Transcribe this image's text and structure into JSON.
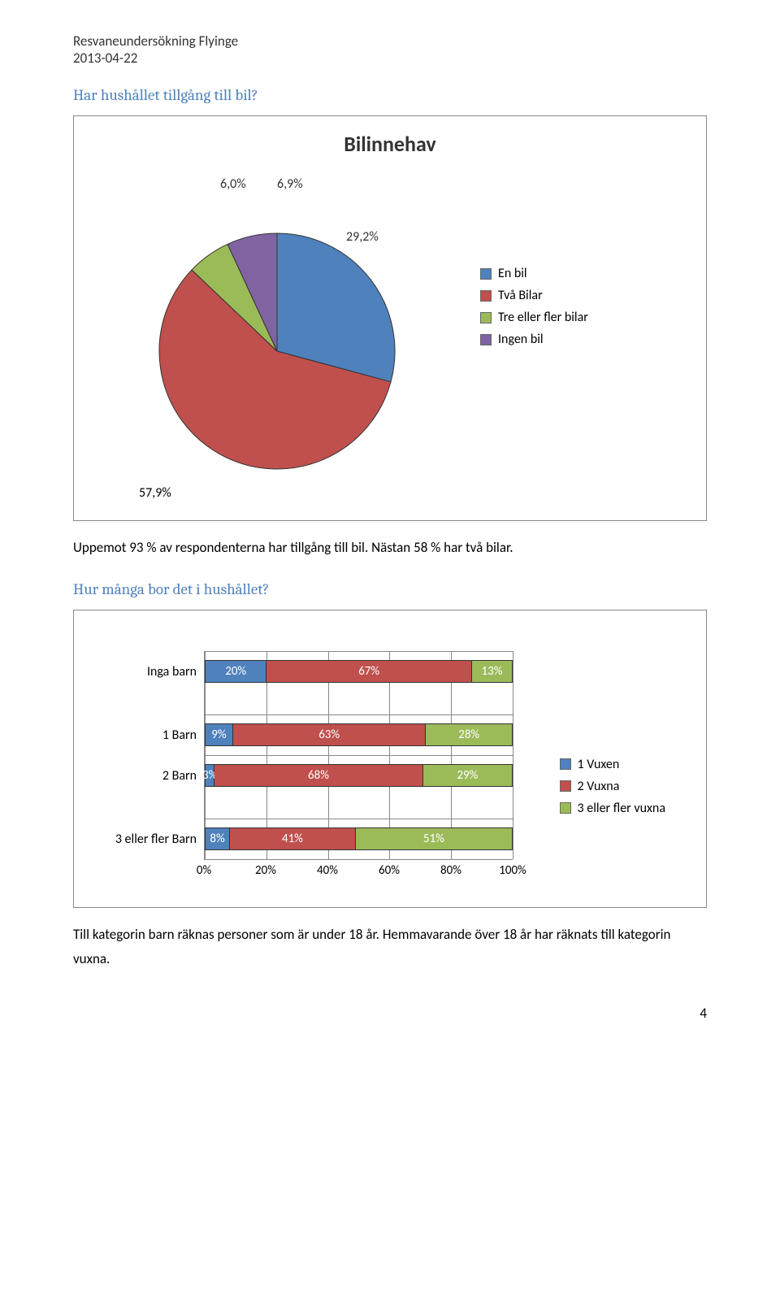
{
  "header": {
    "line1": "Resvaneundersökning Flyinge",
    "line2": "2013-04-22"
  },
  "section1": {
    "heading": "Har hushållet tillgång till bil?",
    "chart": {
      "title": "Bilinnehav",
      "type": "pie",
      "slices": [
        {
          "label": "En bil",
          "value": 29.2,
          "display": "29,2%",
          "color": "#4f81bd"
        },
        {
          "label": "Två Bilar",
          "value": 57.9,
          "display": "57,9%",
          "color": "#c0504d"
        },
        {
          "label": "Tre eller fler bilar",
          "value": 6.0,
          "display": "6,0%",
          "color": "#9bbb59"
        },
        {
          "label": "Ingen bil",
          "value": 6.9,
          "display": "6,9%",
          "color": "#8064a2"
        }
      ],
      "bottom_label": "57,9%",
      "label_fontsize": 16,
      "title_fontsize": 26
    },
    "body": "Uppemot 93 % av respondenterna har tillgång till bil. Nästan 58 % har två bilar."
  },
  "section2": {
    "heading": "Hur många bor det i hushållet?",
    "chart": {
      "type": "stacked-bar-horizontal",
      "categories": [
        {
          "label": "Inga barn",
          "segments": [
            20,
            67,
            13
          ],
          "seg_labels": [
            "20%",
            "67%",
            "13%"
          ]
        },
        {
          "label": "1 Barn",
          "segments": [
            9,
            63,
            28
          ],
          "seg_labels": [
            "9%",
            "63%",
            "28%"
          ]
        },
        {
          "label": "2 Barn",
          "segments": [
            3,
            68,
            29
          ],
          "seg_labels": [
            "3%",
            "68%",
            "29%"
          ]
        },
        {
          "label": "3 eller fler Barn",
          "segments": [
            8,
            41,
            51
          ],
          "seg_labels": [
            "8%",
            "41%",
            "51%"
          ]
        }
      ],
      "series": [
        {
          "name": "1 Vuxen",
          "color": "#4f81bd"
        },
        {
          "name": "2 Vuxna",
          "color": "#c0504d"
        },
        {
          "name": "3 eller fler vuxna",
          "color": "#9bbb59"
        }
      ],
      "x_ticks": [
        "0%",
        "20%",
        "40%",
        "60%",
        "80%",
        "100%"
      ],
      "x_max": 100
    },
    "body": "Till kategorin barn räknas personer som är under 18 år. Hemmavarande över 18 år har räknats till kategorin vuxna."
  },
  "page_number": "4"
}
